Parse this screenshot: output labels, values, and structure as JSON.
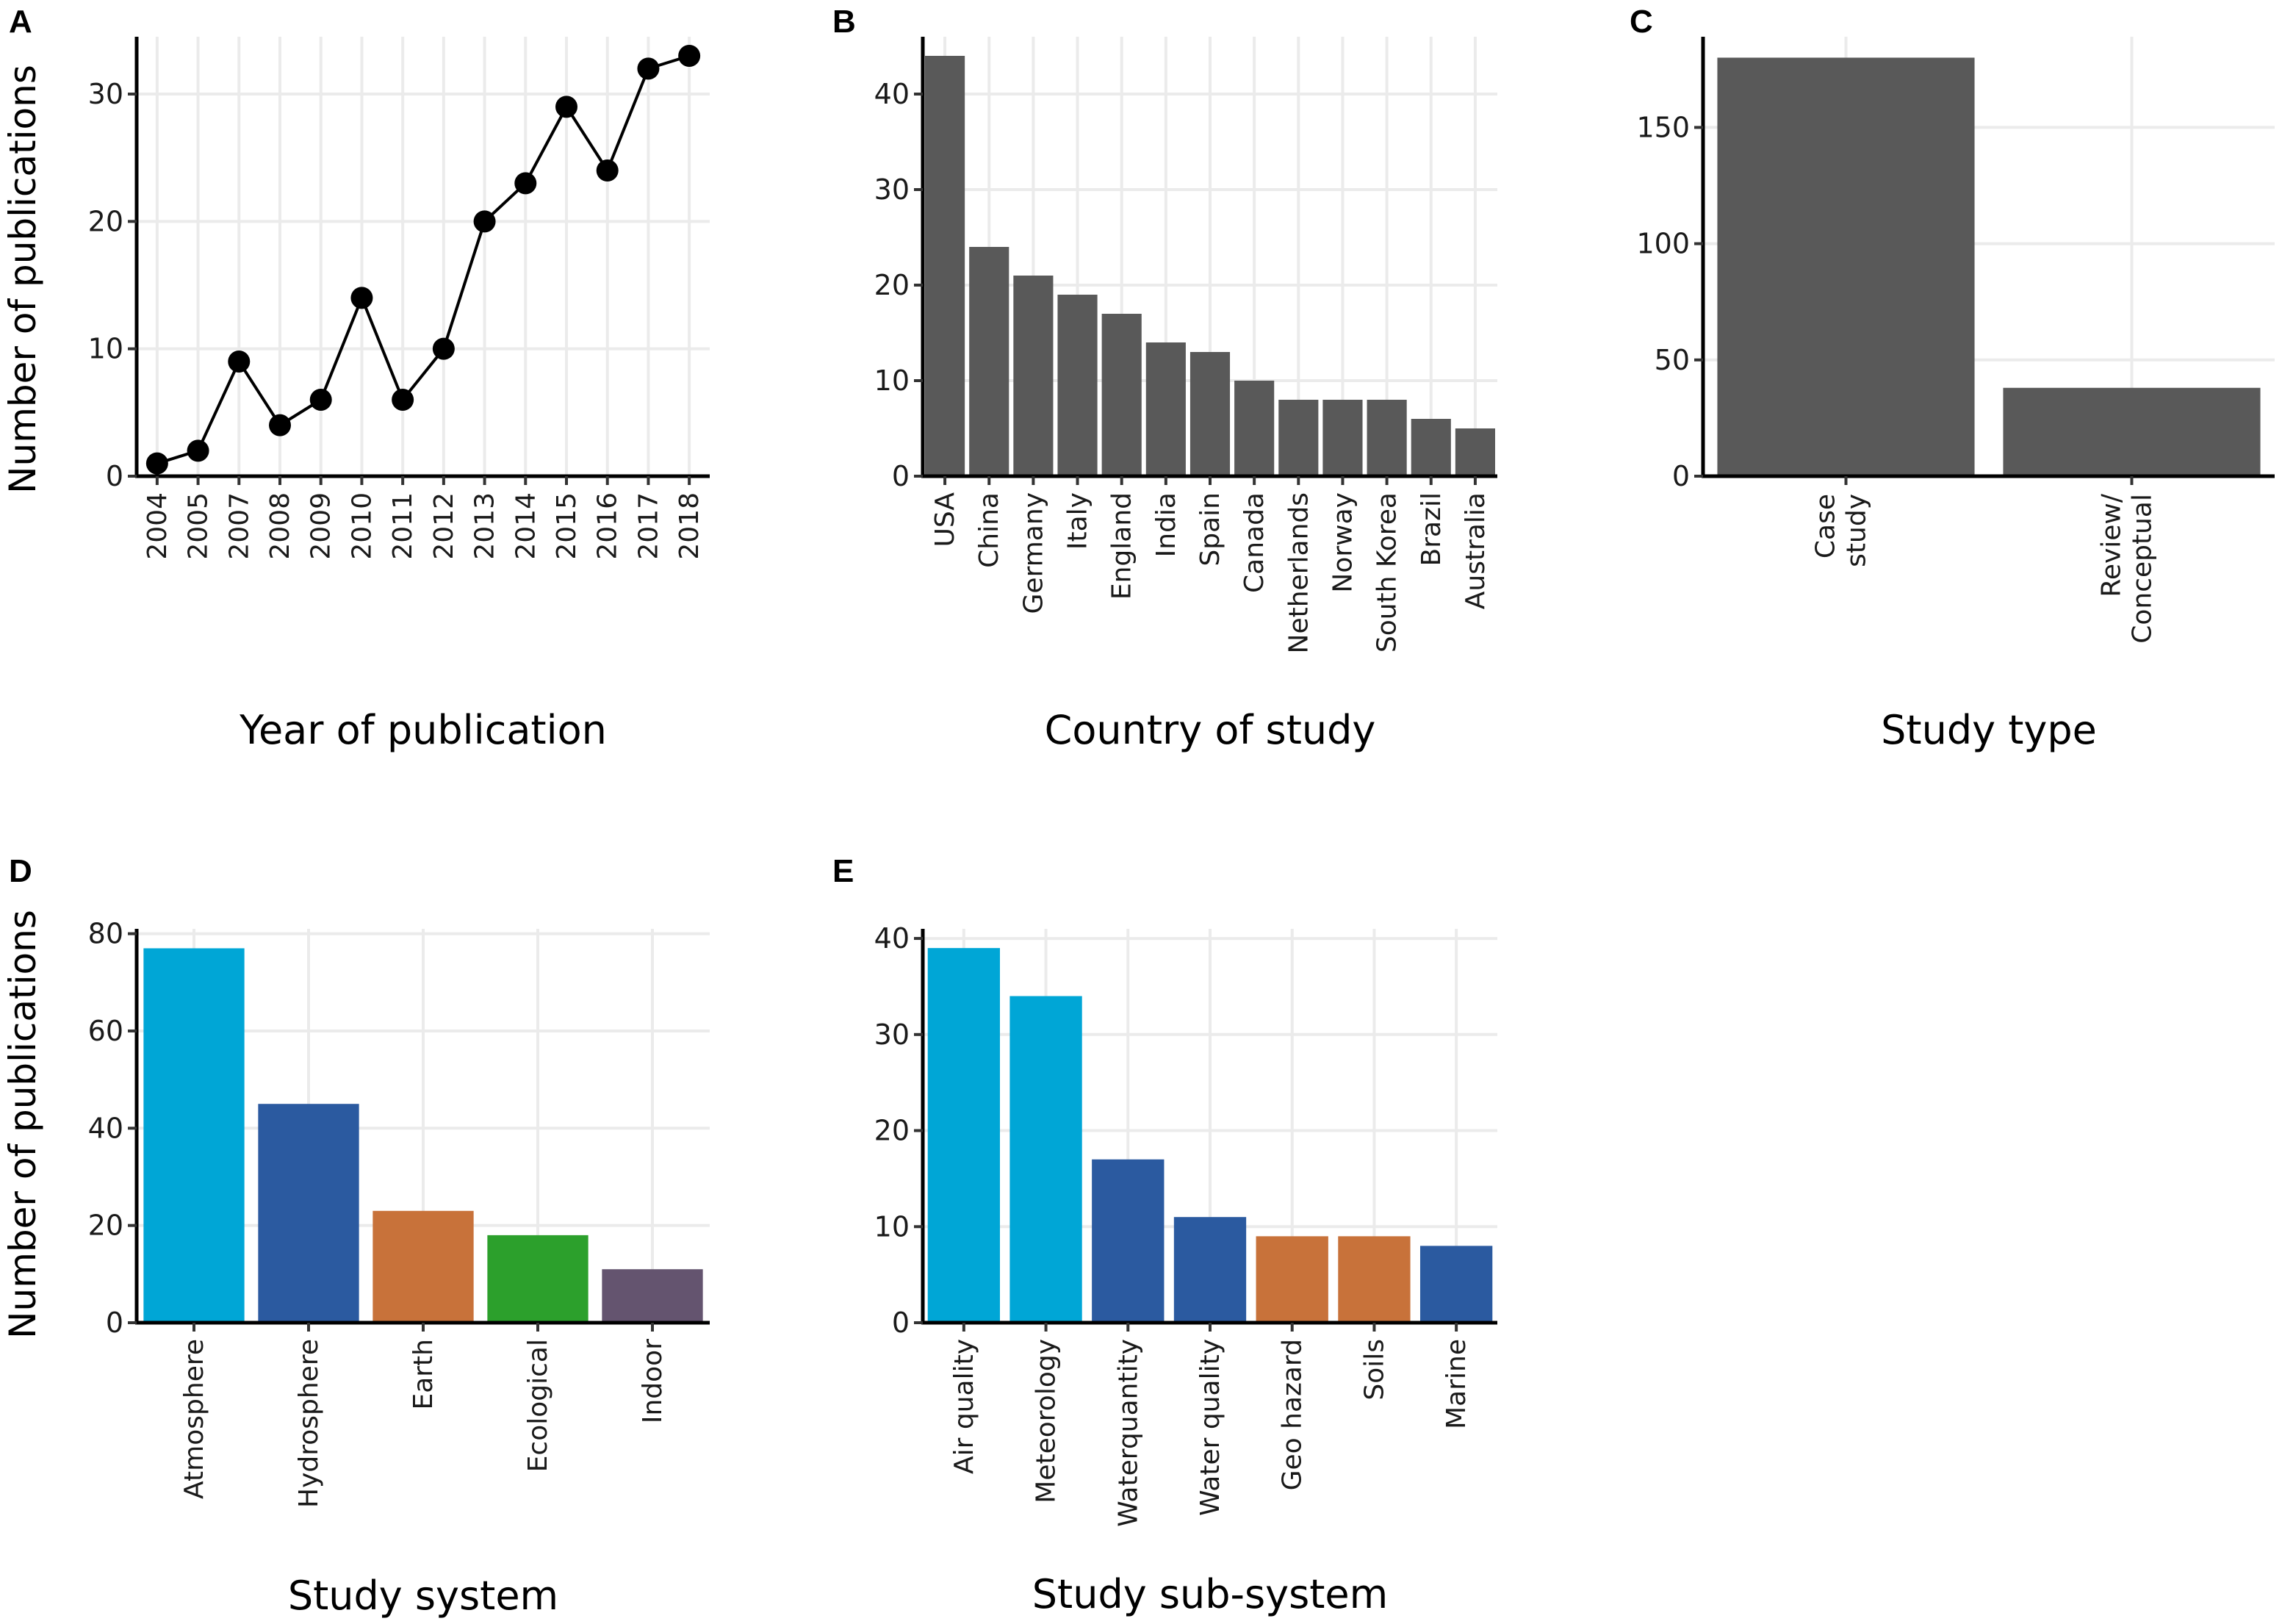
{
  "chart_data": [
    {
      "panel": "A",
      "type": "line",
      "categories": [
        "2004",
        "2005",
        "2007",
        "2008",
        "2009",
        "2010",
        "2011",
        "2012",
        "2013",
        "2014",
        "2015",
        "2016",
        "2017",
        "2018"
      ],
      "values": [
        1,
        2,
        9,
        4,
        6,
        14,
        6,
        10,
        20,
        23,
        29,
        24,
        32,
        33
      ],
      "xlabel": "Year of publication",
      "ylabel": "Number of publications",
      "ylim": [
        0,
        34.5
      ],
      "yticks": [
        0,
        10,
        20,
        30
      ],
      "color": "#000000"
    },
    {
      "panel": "B",
      "type": "bar",
      "categories": [
        "USA",
        "China",
        "Germany",
        "Italy",
        "England",
        "India",
        "Spain",
        "Canada",
        "Netherlands",
        "Norway",
        "South Korea",
        "Brazil",
        "Australia"
      ],
      "values": [
        44,
        24,
        21,
        19,
        17,
        14,
        13,
        10,
        8,
        8,
        8,
        6,
        5
      ],
      "xlabel": "Country of study",
      "ylabel": "",
      "ylim": [
        0,
        46
      ],
      "yticks": [
        0,
        10,
        20,
        30,
        40
      ],
      "color": "#595959"
    },
    {
      "panel": "C",
      "type": "bar",
      "categories": [
        [
          "Case",
          "study"
        ],
        [
          "Review/",
          "Conceptual"
        ]
      ],
      "values": [
        180,
        38
      ],
      "xlabel": "Study type",
      "ylabel": "",
      "ylim": [
        0,
        189
      ],
      "yticks": [
        0,
        50,
        100,
        150
      ],
      "color": "#595959"
    },
    {
      "panel": "D",
      "type": "bar",
      "categories": [
        "Atmosphere",
        "Hydrosphere",
        "Earth",
        "Ecological",
        "Indoor"
      ],
      "values": [
        77,
        45,
        23,
        18,
        11
      ],
      "colors": [
        "#00a6d6",
        "#2b5aa0",
        "#c8723a",
        "#2ca02c",
        "#64546f"
      ],
      "xlabel": "Study system",
      "ylabel": "Number of publications",
      "ylim": [
        0,
        81
      ],
      "yticks": [
        0,
        20,
        40,
        60,
        80
      ]
    },
    {
      "panel": "E",
      "type": "bar",
      "categories": [
        "Air quality",
        "Meteorology",
        "Waterquantity",
        "Water quality",
        "Geo hazard",
        "Soils",
        "Marine"
      ],
      "values": [
        39,
        34,
        17,
        11,
        9,
        9,
        8
      ],
      "colors": [
        "#00a6d6",
        "#00a6d6",
        "#2b5aa0",
        "#2b5aa0",
        "#c8723a",
        "#c8723a",
        "#2b5aa0"
      ],
      "xlabel": "Study sub-system",
      "ylabel": "",
      "ylim": [
        0,
        41
      ],
      "yticks": [
        0,
        10,
        20,
        30,
        40
      ]
    }
  ]
}
